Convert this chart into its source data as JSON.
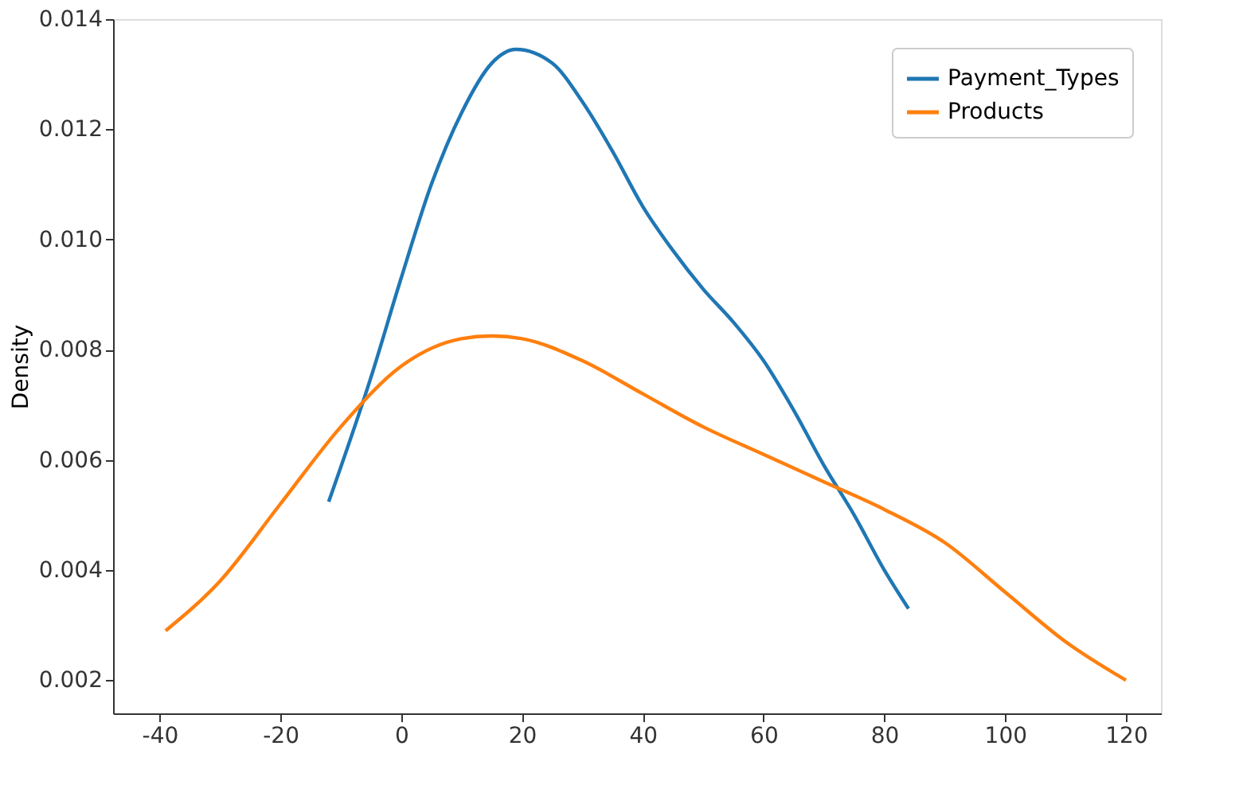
{
  "chart_data": {
    "type": "line",
    "ylabel": "Density",
    "xlim": [
      -47.7,
      125.8
    ],
    "ylim": [
      0.0014,
      0.014
    ],
    "xticks": [
      -40,
      -20,
      0,
      20,
      40,
      60,
      80,
      100,
      120
    ],
    "yticks": [
      {
        "value": 0.002,
        "label": "0.002"
      },
      {
        "value": 0.004,
        "label": "0.004"
      },
      {
        "value": 0.006,
        "label": "0.006"
      },
      {
        "value": 0.008,
        "label": "0.008"
      },
      {
        "value": 0.01,
        "label": "0.010"
      },
      {
        "value": 0.012,
        "label": "0.012"
      },
      {
        "value": 0.014,
        "label": "0.014"
      }
    ],
    "grid": false,
    "legend": "top right",
    "line_style": "solid",
    "marker": "none",
    "series": [
      {
        "name": "Payment_Types",
        "color": "#1f77b4",
        "x": [
          -12,
          -5,
          0,
          5,
          10,
          15,
          19,
          25,
          30,
          35,
          40,
          45,
          50,
          55,
          60,
          65,
          70,
          75,
          80,
          84
        ],
        "values": [
          0.00524,
          0.0075,
          0.0093,
          0.011,
          0.0123,
          0.0132,
          0.01345,
          0.0132,
          0.0125,
          0.0116,
          0.0106,
          0.0098,
          0.0091,
          0.0085,
          0.0078,
          0.0069,
          0.0059,
          0.005,
          0.004,
          0.0033
        ]
      },
      {
        "name": "Products",
        "color": "#ff7f0e",
        "x": [
          -39,
          -30,
          -20,
          -10,
          0,
          10,
          15,
          20,
          30,
          40,
          50,
          60,
          70,
          80,
          90,
          100,
          110,
          120
        ],
        "values": [
          0.0029,
          0.0038,
          0.0052,
          0.0066,
          0.0077,
          0.0082,
          0.00825,
          0.0082,
          0.0078,
          0.0072,
          0.0066,
          0.0061,
          0.0056,
          0.0051,
          0.0045,
          0.0036,
          0.0027,
          0.002
        ]
      }
    ]
  }
}
